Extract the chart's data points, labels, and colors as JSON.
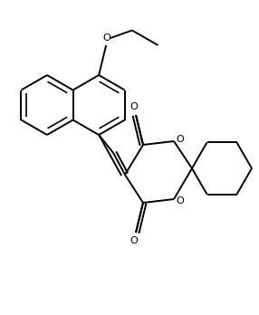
{
  "background_color": "#ffffff",
  "line_color": "#000000",
  "line_width": 1.4,
  "fig_width": 2.86,
  "fig_height": 3.48,
  "dpi": 100,
  "xlim": [
    0,
    286
  ],
  "ylim": [
    0,
    348
  ]
}
